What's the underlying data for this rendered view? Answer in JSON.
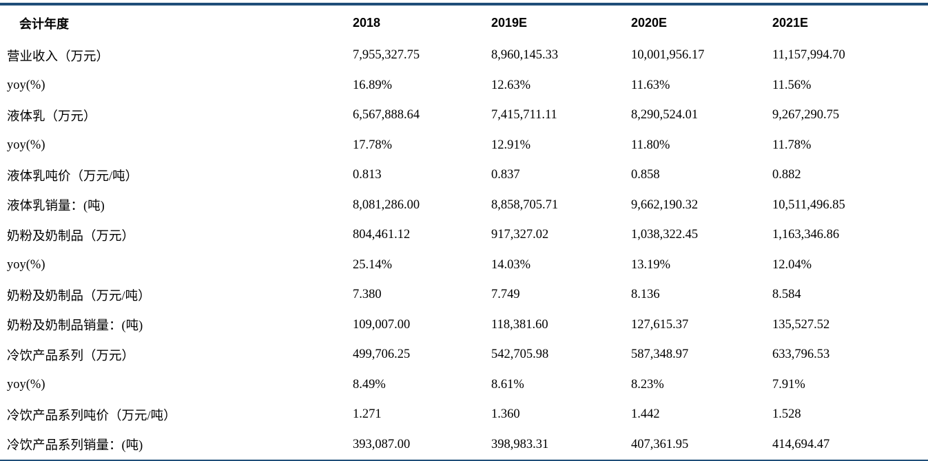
{
  "table": {
    "headers": [
      "会计年度",
      "2018",
      "2019E",
      "2020E",
      "2021E"
    ],
    "rows": [
      [
        "营业收入（万元）",
        "7,955,327.75",
        "8,960,145.33",
        "10,001,956.17",
        "11,157,994.70"
      ],
      [
        "yoy(%)",
        "16.89%",
        "12.63%",
        "11.63%",
        "11.56%"
      ],
      [
        "液体乳（万元）",
        "6,567,888.64",
        "7,415,711.11",
        "8,290,524.01",
        "9,267,290.75"
      ],
      [
        "yoy(%)",
        "17.78%",
        "12.91%",
        "11.80%",
        "11.78%"
      ],
      [
        "液体乳吨价（万元/吨）",
        "0.813",
        "0.837",
        "0.858",
        "0.882"
      ],
      [
        "液体乳销量：(吨)",
        "8,081,286.00",
        "8,858,705.71",
        "9,662,190.32",
        "10,511,496.85"
      ],
      [
        "奶粉及奶制品（万元）",
        "804,461.12",
        "917,327.02",
        "1,038,322.45",
        "1,163,346.86"
      ],
      [
        "yoy(%)",
        "25.14%",
        "14.03%",
        "13.19%",
        "12.04%"
      ],
      [
        "奶粉及奶制品（万元/吨）",
        "7.380",
        "7.749",
        "8.136",
        "8.584"
      ],
      [
        "奶粉及奶制品销量：(吨)",
        "109,007.00",
        "118,381.60",
        "127,615.37",
        "135,527.52"
      ],
      [
        "冷饮产品系列（万元）",
        "499,706.25",
        "542,705.98",
        "587,348.97",
        "633,796.53"
      ],
      [
        "yoy(%)",
        "8.49%",
        "8.61%",
        "8.23%",
        "7.91%"
      ],
      [
        "冷饮产品系列吨价（万元/吨）",
        "1.271",
        "1.360",
        "1.442",
        "1.528"
      ],
      [
        "冷饮产品系列销量：(吨)",
        "393,087.00",
        "398,983.31",
        "407,361.95",
        "414,694.47"
      ]
    ]
  },
  "colors": {
    "rule": "#1f4e79",
    "text": "#000000",
    "background": "#ffffff"
  }
}
